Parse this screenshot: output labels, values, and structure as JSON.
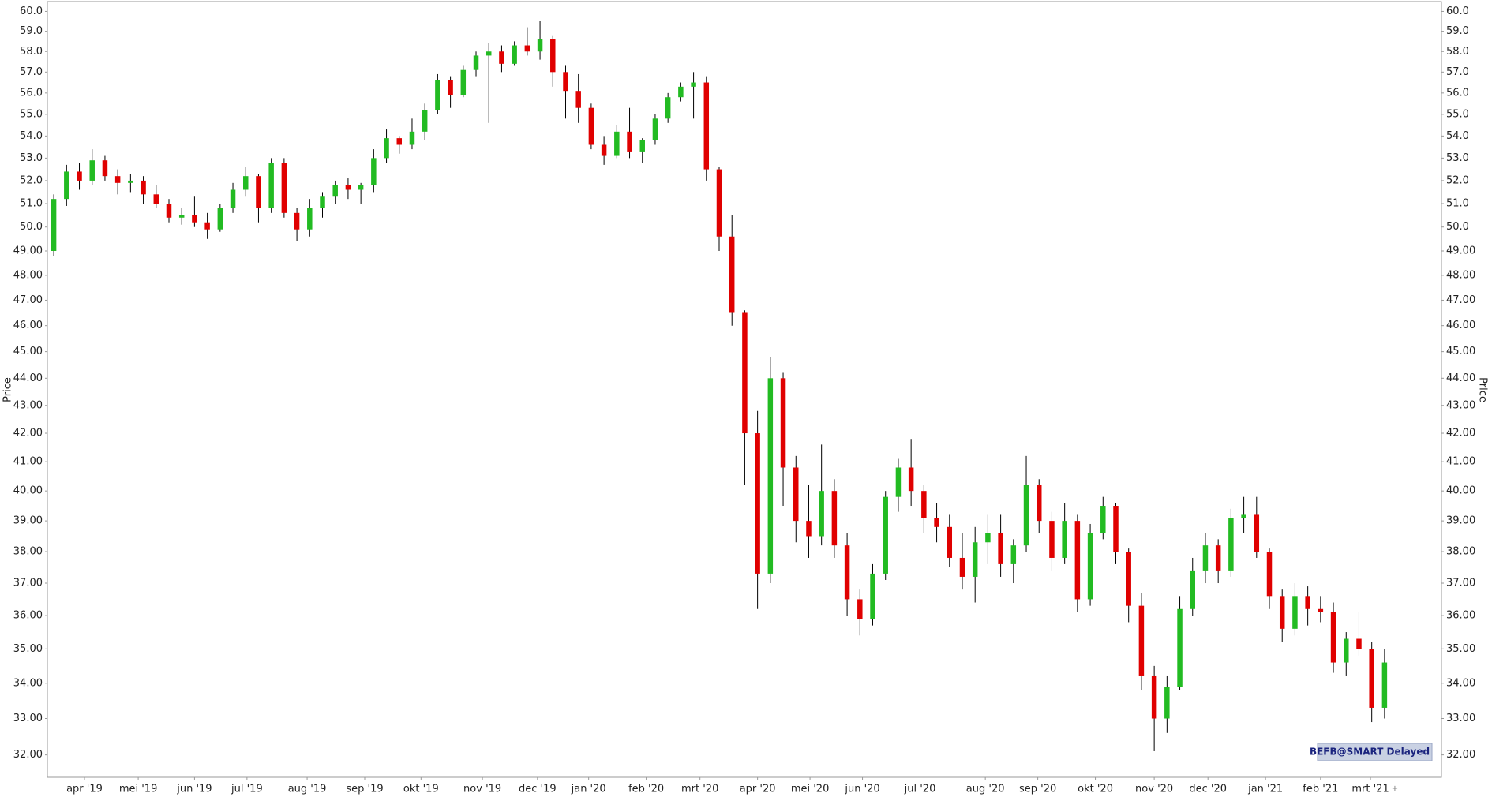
{
  "chart_data": {
    "type": "candlestick",
    "ylabel": "Price",
    "log_y": true,
    "grid": false,
    "up_color": "#22bb22",
    "down_color": "#e00000",
    "wick_color": "#000000",
    "badge": "BEFB@SMART Delayed",
    "ylim": [
      31.4,
      60.5
    ],
    "yticks": [
      {
        "value": 60,
        "label": "60.0"
      },
      {
        "value": 59,
        "label": "59.0"
      },
      {
        "value": 58,
        "label": "58.0"
      },
      {
        "value": 57,
        "label": "57.0"
      },
      {
        "value": 56,
        "label": "56.0"
      },
      {
        "value": 55,
        "label": "55.0"
      },
      {
        "value": 54,
        "label": "54.0"
      },
      {
        "value": 53,
        "label": "53.0"
      },
      {
        "value": 52,
        "label": "52.0"
      },
      {
        "value": 51,
        "label": "51.0"
      },
      {
        "value": 50,
        "label": "50.0"
      },
      {
        "value": 49,
        "label": "49.00"
      },
      {
        "value": 48,
        "label": "48.00"
      },
      {
        "value": 47,
        "label": "47.00"
      },
      {
        "value": 46,
        "label": "46.00"
      },
      {
        "value": 45,
        "label": "45.00"
      },
      {
        "value": 44,
        "label": "44.00"
      },
      {
        "value": 43,
        "label": "43.00"
      },
      {
        "value": 42,
        "label": "42.00"
      },
      {
        "value": 41,
        "label": "41.00"
      },
      {
        "value": 40,
        "label": "40.00"
      },
      {
        "value": 39,
        "label": "39.00"
      },
      {
        "value": 38,
        "label": "38.00"
      },
      {
        "value": 37,
        "label": "37.00"
      },
      {
        "value": 36,
        "label": "36.00"
      },
      {
        "value": 35,
        "label": "35.00"
      },
      {
        "value": 34,
        "label": "34.00"
      },
      {
        "value": 33,
        "label": "33.00"
      },
      {
        "value": 32,
        "label": "32.00"
      }
    ],
    "xticks": [
      {
        "value": 2.4,
        "label": "apr '19"
      },
      {
        "value": 6.6,
        "label": "mei '19"
      },
      {
        "value": 11.0,
        "label": "jun '19"
      },
      {
        "value": 15.1,
        "label": "jul '19"
      },
      {
        "value": 19.8,
        "label": "aug '19"
      },
      {
        "value": 24.3,
        "label": "sep '19"
      },
      {
        "value": 28.7,
        "label": "okt '19"
      },
      {
        "value": 33.5,
        "label": "nov '19"
      },
      {
        "value": 37.8,
        "label": "dec '19"
      },
      {
        "value": 41.8,
        "label": "jan '20"
      },
      {
        "value": 46.3,
        "label": "feb '20"
      },
      {
        "value": 50.5,
        "label": "mrt '20"
      },
      {
        "value": 55.0,
        "label": "apr '20"
      },
      {
        "value": 59.1,
        "label": "mei '20"
      },
      {
        "value": 63.2,
        "label": "jun '20"
      },
      {
        "value": 67.7,
        "label": "jul '20"
      },
      {
        "value": 72.8,
        "label": "aug '20"
      },
      {
        "value": 76.9,
        "label": "sep '20"
      },
      {
        "value": 81.4,
        "label": "okt '20"
      },
      {
        "value": 86.0,
        "label": "nov '20"
      },
      {
        "value": 90.2,
        "label": "dec '20"
      },
      {
        "value": 94.7,
        "label": "jan '21"
      },
      {
        "value": 99.0,
        "label": "feb '21"
      },
      {
        "value": 102.9,
        "label": "mrt '21"
      }
    ],
    "categories": [
      null,
      null,
      null,
      null,
      null,
      null,
      null,
      null,
      null,
      null,
      null,
      null,
      null,
      null,
      null,
      null,
      null,
      null,
      null,
      null,
      null,
      null,
      null,
      null,
      null,
      null,
      null,
      null,
      null,
      null,
      null,
      null,
      null,
      null,
      null,
      null,
      null,
      null,
      null,
      null,
      null,
      null,
      null,
      null,
      null,
      null,
      null,
      null,
      null,
      null,
      null,
      null,
      null,
      null,
      null,
      null,
      null,
      null,
      null,
      null,
      null,
      null,
      null,
      null,
      null,
      null,
      null,
      null,
      null,
      null,
      null,
      null,
      null,
      null,
      null,
      null,
      null,
      null,
      null,
      null,
      null,
      null,
      null,
      null,
      null,
      null,
      null,
      null,
      null,
      null,
      null,
      null,
      null,
      null,
      null,
      null,
      null,
      null,
      null,
      null,
      null,
      null,
      null,
      null,
      null
    ],
    "open": [
      49.0,
      51.2,
      52.4,
      52.0,
      52.9,
      52.2,
      51.9,
      52.0,
      51.4,
      51.0,
      50.4,
      50.5,
      50.2,
      49.9,
      50.8,
      51.6,
      52.2,
      50.8,
      52.8,
      50.6,
      49.9,
      50.8,
      51.3,
      51.8,
      51.6,
      51.8,
      53.0,
      53.9,
      53.6,
      54.2,
      55.2,
      56.6,
      55.9,
      57.1,
      57.8,
      58.0,
      57.4,
      58.3,
      58.0,
      58.6,
      57.0,
      56.1,
      55.3,
      53.6,
      53.1,
      54.2,
      53.3,
      53.8,
      54.8,
      55.8,
      56.3,
      56.5,
      52.5,
      49.6,
      46.5,
      42.0,
      37.3,
      44.0,
      40.8,
      39.0,
      38.5,
      40.0,
      38.2,
      36.5,
      35.9,
      37.3,
      39.8,
      40.8,
      40.0,
      39.1,
      38.8,
      37.8,
      37.2,
      38.3,
      38.6,
      37.6,
      38.2,
      40.2,
      39.0,
      37.8,
      39.0,
      36.5,
      38.6,
      39.5,
      38.0,
      36.3,
      34.2,
      33.0,
      33.9,
      36.2,
      37.4,
      38.2,
      37.4,
      39.1,
      39.2,
      38.0,
      36.6,
      35.6,
      36.6,
      36.2,
      36.1,
      34.6,
      35.3,
      35.0,
      33.3
    ],
    "high": [
      51.4,
      52.7,
      52.8,
      53.4,
      53.1,
      52.5,
      52.3,
      52.2,
      51.8,
      51.2,
      50.8,
      51.3,
      50.6,
      51.0,
      51.9,
      52.6,
      52.3,
      53.0,
      53.0,
      50.8,
      51.2,
      51.5,
      52.0,
      52.1,
      51.9,
      53.4,
      54.3,
      54.0,
      54.8,
      55.5,
      56.9,
      56.8,
      57.3,
      58.0,
      58.4,
      58.3,
      58.5,
      59.2,
      59.5,
      58.8,
      57.3,
      56.9,
      55.5,
      54.0,
      54.5,
      55.3,
      53.9,
      55.0,
      56.0,
      56.5,
      57.0,
      56.8,
      52.6,
      50.5,
      46.6,
      42.8,
      44.8,
      44.2,
      41.2,
      40.2,
      41.6,
      40.4,
      38.6,
      36.8,
      37.6,
      40.0,
      41.1,
      41.8,
      40.2,
      39.6,
      39.2,
      38.6,
      38.8,
      39.2,
      39.2,
      38.4,
      41.2,
      40.4,
      39.3,
      39.6,
      39.2,
      38.9,
      39.8,
      39.6,
      38.1,
      36.7,
      34.5,
      34.2,
      36.6,
      37.8,
      38.6,
      38.4,
      39.4,
      39.8,
      39.8,
      38.1,
      36.8,
      37.0,
      36.9,
      36.6,
      36.4,
      35.5,
      36.1,
      35.2,
      35.0
    ],
    "low": [
      48.8,
      50.9,
      51.6,
      51.8,
      52.0,
      51.4,
      51.5,
      51.0,
      50.8,
      50.2,
      50.1,
      50.0,
      49.5,
      49.8,
      50.6,
      51.3,
      50.2,
      50.6,
      50.4,
      49.4,
      49.6,
      50.4,
      51.0,
      51.2,
      51.0,
      51.5,
      52.8,
      53.2,
      53.4,
      53.8,
      55.0,
      55.3,
      55.8,
      56.8,
      54.6,
      57.0,
      57.3,
      57.8,
      57.6,
      56.3,
      54.8,
      54.6,
      53.4,
      52.7,
      53.0,
      53.0,
      52.8,
      53.6,
      54.6,
      55.6,
      54.8,
      52.0,
      49.0,
      46.0,
      40.2,
      36.2,
      37.0,
      39.5,
      38.3,
      37.8,
      38.2,
      37.8,
      36.0,
      35.4,
      35.7,
      37.1,
      39.3,
      39.5,
      38.6,
      38.3,
      37.5,
      36.8,
      36.4,
      37.6,
      37.2,
      37.0,
      38.0,
      38.6,
      37.4,
      37.6,
      36.1,
      36.3,
      38.4,
      37.6,
      35.8,
      33.8,
      32.1,
      32.6,
      33.8,
      36.0,
      37.0,
      37.0,
      37.2,
      38.6,
      37.8,
      36.2,
      35.2,
      35.4,
      35.7,
      35.8,
      34.3,
      34.2,
      34.8,
      32.9,
      33.0
    ],
    "close": [
      51.2,
      52.4,
      52.0,
      52.9,
      52.2,
      51.9,
      52.0,
      51.4,
      51.0,
      50.4,
      50.5,
      50.2,
      49.9,
      50.8,
      51.6,
      52.2,
      50.8,
      52.8,
      50.6,
      49.9,
      50.8,
      51.3,
      51.8,
      51.6,
      51.8,
      53.0,
      53.9,
      53.6,
      54.2,
      55.2,
      56.6,
      55.9,
      57.1,
      57.8,
      58.0,
      57.4,
      58.3,
      58.0,
      58.6,
      57.0,
      56.1,
      55.3,
      53.6,
      53.1,
      54.2,
      53.3,
      53.8,
      54.8,
      55.8,
      56.3,
      56.5,
      52.5,
      49.6,
      46.5,
      42.0,
      37.3,
      44.0,
      40.8,
      39.0,
      38.5,
      40.0,
      38.2,
      36.5,
      35.9,
      37.3,
      39.8,
      40.8,
      40.0,
      39.1,
      38.8,
      37.8,
      37.2,
      38.3,
      38.6,
      37.6,
      38.2,
      40.2,
      39.0,
      37.8,
      39.0,
      36.5,
      38.6,
      39.5,
      38.0,
      36.3,
      34.2,
      33.0,
      33.9,
      36.2,
      37.4,
      38.2,
      37.4,
      39.1,
      39.2,
      38.0,
      36.6,
      35.6,
      36.6,
      36.2,
      36.1,
      34.6,
      35.3,
      35.0,
      33.3,
      34.6
    ]
  }
}
